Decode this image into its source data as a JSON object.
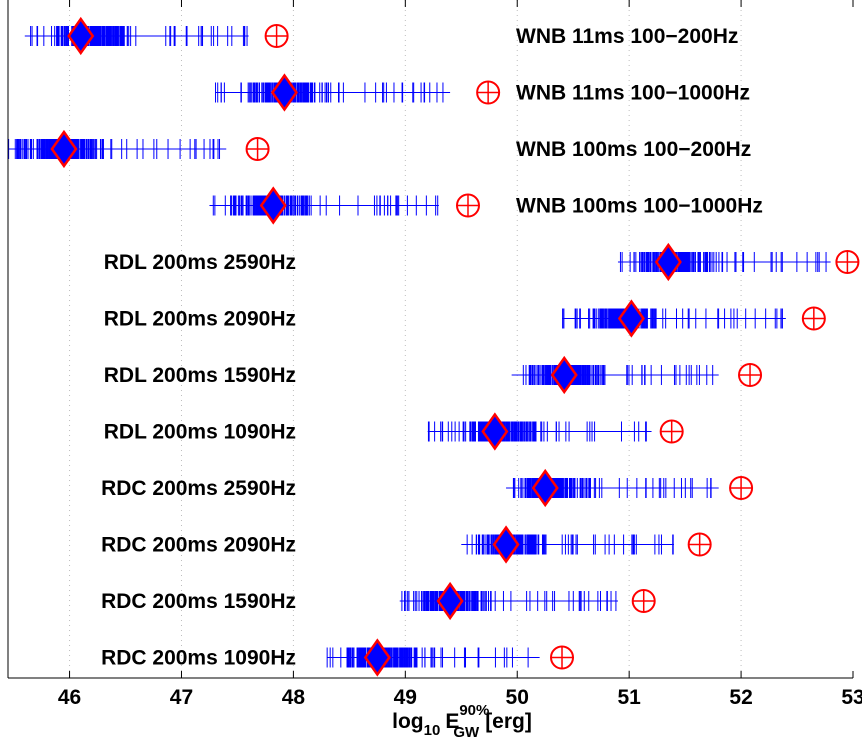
{
  "chart_data": {
    "type": "scatter",
    "xlabel": {
      "base": "log",
      "base_sub": "10",
      "sym": "E",
      "sym_sub": "GW",
      "sym_sup": "90%",
      "unit": "[erg]"
    },
    "xlim": [
      45.45,
      53.0
    ],
    "xticks": [
      "46",
      "47",
      "48",
      "49",
      "50",
      "51",
      "52",
      "53"
    ],
    "grid": "vertical dotted at major ticks",
    "colors": {
      "samples": "#0000ff",
      "markers": "#ff0000",
      "axis": "#000000",
      "grid": "#bdbdbd"
    },
    "series": [
      {
        "name": "WNB 11ms 100−200Hz",
        "label_side": "right",
        "range": [
          45.6,
          47.6
        ],
        "dense": [
          45.8,
          46.6
        ],
        "median": 46.1,
        "upper": 47.85
      },
      {
        "name": "WNB 11ms 100−1000Hz",
        "label_side": "right",
        "range": [
          47.3,
          49.4
        ],
        "dense": [
          47.55,
          48.3
        ],
        "median": 47.92,
        "upper": 49.74
      },
      {
        "name": "WNB 100ms 100−200Hz",
        "label_side": "right",
        "range": [
          45.45,
          47.4
        ],
        "dense": [
          45.5,
          46.4
        ],
        "median": 45.95,
        "upper": 47.68
      },
      {
        "name": "WNB 100ms 100−1000Hz",
        "label_side": "right",
        "range": [
          47.25,
          49.3
        ],
        "dense": [
          47.4,
          48.2
        ],
        "median": 47.82,
        "upper": 49.56
      },
      {
        "name": "RDL 200ms 2590Hz",
        "label_side": "left",
        "range": [
          50.9,
          52.8
        ],
        "dense": [
          51.0,
          51.8
        ],
        "median": 51.35,
        "upper": 52.95
      },
      {
        "name": "RDL 200ms 2090Hz",
        "label_side": "left",
        "range": [
          50.4,
          52.4
        ],
        "dense": [
          50.6,
          51.3
        ],
        "median": 51.02,
        "upper": 52.65
      },
      {
        "name": "RDL 200ms 1590Hz",
        "label_side": "left",
        "range": [
          49.95,
          51.8
        ],
        "dense": [
          50.05,
          50.8
        ],
        "median": 50.42,
        "upper": 52.08
      },
      {
        "name": "RDL 200ms 1090Hz",
        "label_side": "left",
        "range": [
          49.2,
          51.2
        ],
        "dense": [
          49.4,
          50.2
        ],
        "median": 49.8,
        "upper": 51.38
      },
      {
        "name": "RDC 200ms 2590Hz",
        "label_side": "left",
        "range": [
          49.9,
          51.8
        ],
        "dense": [
          49.95,
          50.7
        ],
        "median": 50.25,
        "upper": 52.0
      },
      {
        "name": "RDC 200ms 2090Hz",
        "label_side": "left",
        "range": [
          49.5,
          51.4
        ],
        "dense": [
          49.6,
          50.3
        ],
        "median": 49.9,
        "upper": 51.63
      },
      {
        "name": "RDC 200ms 1590Hz",
        "label_side": "left",
        "range": [
          48.95,
          50.9
        ],
        "dense": [
          49.05,
          49.8
        ],
        "median": 49.4,
        "upper": 51.13
      },
      {
        "name": "RDC 200ms 1090Hz",
        "label_side": "left",
        "range": [
          48.3,
          50.2
        ],
        "dense": [
          48.4,
          49.2
        ],
        "median": 48.75,
        "upper": 50.4
      }
    ]
  }
}
